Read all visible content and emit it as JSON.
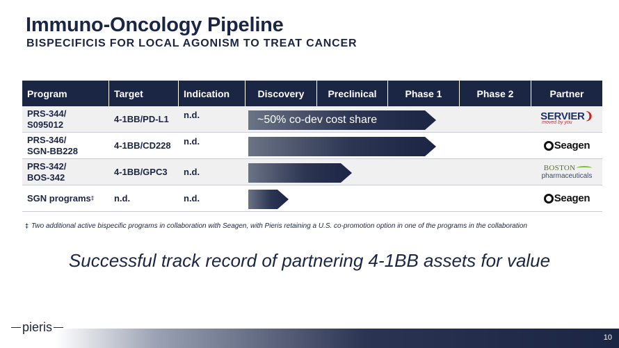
{
  "slide": {
    "title": "Immuno-Oncology Pipeline",
    "subtitle": "BISPECIFICIS FOR LOCAL AGONISM TO TREAT CANCER",
    "tagline": "Successful track record of partnering 4-1BB assets for value",
    "footnote_symbol": "‡",
    "footnote": "Two  additional active bispecific programs in collaboration with  Seagen, with  Pieris retaining a U.S. co-promotion option in one of the programs in the collaboration",
    "page_number": "10",
    "logo": "pieris"
  },
  "colors": {
    "navy": "#1b2544",
    "row_shade": "#f0f0f0",
    "servier_red": "#d71f28"
  },
  "table": {
    "headers": [
      "Program",
      "Target",
      "Indication",
      "Discovery",
      "Preclinical",
      "Phase 1",
      "Phase 2",
      "Partner"
    ],
    "rows": [
      {
        "program": "PRS-344/\nS095012",
        "target": "4-1BB/PD-L1",
        "indication": "n.d.",
        "stage_progress": 0.67,
        "bar_label": "~50% co-dev cost share",
        "partner": {
          "name": "SERVIER",
          "tag": "moved by you",
          "logo": "servier-logo"
        }
      },
      {
        "program": "PRS-346/\nSGN-BB228",
        "target": "4-1BB/CD228",
        "indication": "n.d.",
        "stage_progress": 0.67,
        "bar_label": "",
        "partner": {
          "name": "Seagen",
          "logo": "seagen-logo"
        }
      },
      {
        "program": "PRS-342/\nBOS-342",
        "target": "4-1BB/GPC3",
        "indication": "n.d.",
        "stage_progress": 0.37,
        "bar_label": "",
        "partner": {
          "name": "BOSTON",
          "name2": "pharmaceuticals",
          "logo": "boston-logo"
        }
      },
      {
        "program": "SGN programs",
        "program_mark": "‡",
        "target": "n.d.",
        "indication": "n.d.",
        "stage_progress": 0.14,
        "bar_label": "",
        "partner": {
          "name": "Seagen",
          "logo": "seagen-logo"
        }
      }
    ]
  }
}
